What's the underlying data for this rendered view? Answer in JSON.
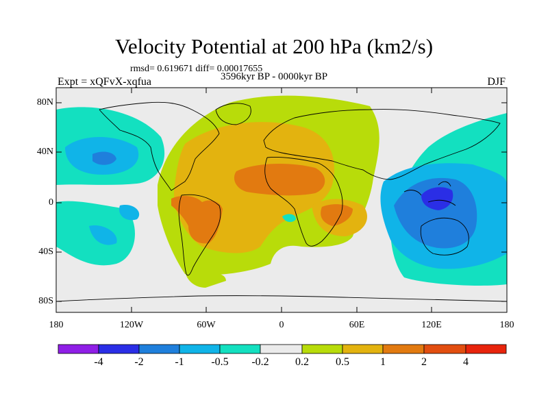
{
  "figure": {
    "title": "Velocity Potential at 200 hPa (km2/s)",
    "stats": "rmsd= 0.619671 diff= 0.00017655",
    "subtitle": "3596kyr BP - 0000kyr BP",
    "left_label": "Expt = xQFvX-xqfua",
    "right_label": "DJF"
  },
  "axes": {
    "lat_ticks": [
      "80N",
      "40N",
      "0",
      "40S",
      "80S"
    ],
    "lon_ticks": [
      "180",
      "120W",
      "60W",
      "0",
      "60E",
      "120E",
      "180"
    ]
  },
  "colorbar": {
    "labels": [
      "-4",
      "-2",
      "-1",
      "-0.5",
      "-0.2",
      "0.2",
      "0.5",
      "1",
      "2",
      "4"
    ],
    "colors": [
      "#8f1fe6",
      "#2a2ee6",
      "#1f7fdc",
      "#10b4e8",
      "#13e0c0",
      "#ebebeb",
      "#b8dc0a",
      "#e3b30f",
      "#e27a10",
      "#e24e10",
      "#e8240c"
    ]
  },
  "map_colors": {
    "ocean_bg": "#ebebeb",
    "neg1": "#13e0c0",
    "neg2": "#10b4e8",
    "neg3": "#1f7fdc",
    "neg4": "#2a2ee6",
    "pos1": "#b8dc0a",
    "pos2": "#e3b30f",
    "pos3": "#e27a10"
  }
}
